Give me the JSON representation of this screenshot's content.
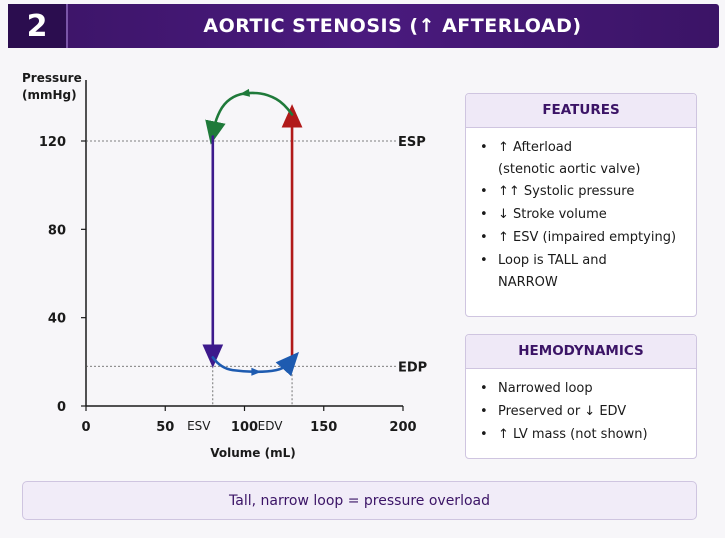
{
  "header": {
    "number": "2",
    "title": "AORTIC STENOSIS (↑ AFTERLOAD)"
  },
  "chart_data": {
    "type": "line",
    "ylabel_line1": "Pressure",
    "ylabel_line2": "(mmHg)",
    "xlabel": "Volume (mL)",
    "xlim": [
      0,
      200
    ],
    "ylim": [
      0,
      140
    ],
    "x_ticks": [
      "0",
      "50",
      "100",
      "150",
      "200"
    ],
    "x_tick_values": [
      0,
      50,
      100,
      150,
      200
    ],
    "y_ticks": [
      "0",
      "40",
      "80",
      "120"
    ],
    "y_tick_values": [
      0,
      40,
      80,
      120
    ],
    "esv_label": "ESV",
    "edv_label": "EDV",
    "esp_label": "ESP",
    "edp_label": "EDP",
    "esv": 80,
    "edv": 130,
    "esp": 120,
    "edp": 18,
    "series": [
      {
        "segment": "isovolumetric-contraction",
        "color": "#b11a1a",
        "points": [
          [
            130,
            22
          ],
          [
            130,
            132
          ]
        ]
      },
      {
        "segment": "ejection",
        "color": "#1f7a3a",
        "points": [
          [
            130,
            132
          ],
          [
            125,
            137
          ],
          [
            115,
            141
          ],
          [
            105,
            142
          ],
          [
            95,
            141
          ],
          [
            87,
            137
          ],
          [
            82,
            130
          ],
          [
            80,
            123
          ]
        ]
      },
      {
        "segment": "isovolumetric-relaxation",
        "color": "#3d1a8c",
        "points": [
          [
            80,
            122
          ],
          [
            80,
            22
          ]
        ]
      },
      {
        "segment": "filling",
        "color": "#1e5bb0",
        "points": [
          [
            80,
            22
          ],
          [
            85,
            17
          ],
          [
            100,
            15.5
          ],
          [
            115,
            15.5
          ],
          [
            125,
            17
          ],
          [
            130,
            21
          ]
        ]
      }
    ]
  },
  "features": {
    "title": "FEATURES",
    "items": [
      {
        "line1": "↑ Afterload",
        "line2": "(stenotic aortic valve)"
      },
      {
        "line1": "↑↑ Systolic pressure",
        "line2": ""
      },
      {
        "line1": "↓ Stroke volume",
        "line2": ""
      },
      {
        "line1": "↑ ESV (impaired emptying)",
        "line2": ""
      },
      {
        "line1": "Loop is TALL and",
        "line2": "NARROW"
      }
    ]
  },
  "hemodynamics": {
    "title": "HEMODYNAMICS",
    "items": [
      {
        "line1": "Narrowed loop"
      },
      {
        "line1": "Preserved or ↓ EDV"
      },
      {
        "line1": "↑ LV mass (not shown)"
      }
    ]
  },
  "footer": {
    "text": "Tall, narrow loop = pressure overload"
  }
}
